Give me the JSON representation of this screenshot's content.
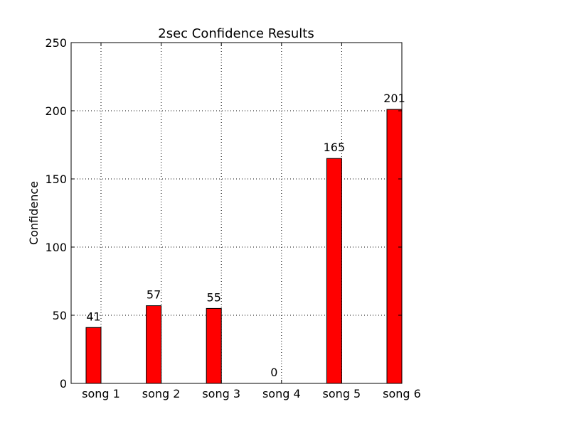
{
  "chart_data": {
    "type": "bar",
    "title": "2sec Confidence Results",
    "xlabel": "",
    "ylabel": "Confidence",
    "categories": [
      "song 1",
      "song 2",
      "song 3",
      "song 4",
      "song 5",
      "song 6"
    ],
    "values": [
      41,
      57,
      55,
      0,
      165,
      201
    ],
    "data_labels": [
      "41",
      "57",
      "55",
      "0",
      "165",
      "201"
    ],
    "ylim": [
      0,
      250
    ],
    "yticks": [
      "0",
      "50",
      "100",
      "150",
      "200",
      "250"
    ],
    "grid": true,
    "bar_color": "#ff0000",
    "edge_color": "#000000"
  }
}
